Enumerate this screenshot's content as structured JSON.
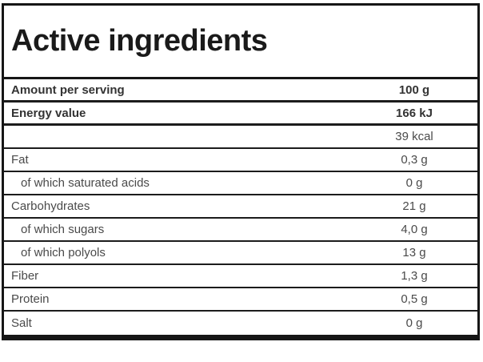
{
  "page": {
    "title": "Active ingredients"
  },
  "table": {
    "rows": [
      {
        "label": "Amount per serving",
        "value": "100 g",
        "emphasis": true
      },
      {
        "label": "Energy value",
        "value": "166 kJ",
        "emphasis": true
      },
      {
        "label": "",
        "value": "39 kcal"
      },
      {
        "label": "Fat",
        "value": "0,3 g"
      },
      {
        "label": "of which saturated acids",
        "value": "0 g",
        "indent": true
      },
      {
        "label": "Carbohydrates",
        "value": "21 g"
      },
      {
        "label": "of which sugars",
        "value": "4,0 g",
        "indent": true
      },
      {
        "label": "of which polyols",
        "value": "13 g",
        "indent": true
      },
      {
        "label": "Fiber",
        "value": "1,3 g"
      },
      {
        "label": "Protein",
        "value": "0,5 g"
      },
      {
        "label": "Salt",
        "value": "0 g"
      }
    ]
  },
  "colors": {
    "background": "#ffffff",
    "border": "#161616",
    "title_text": "#1a1a1a",
    "row_text": "#4a4a4a",
    "emphasis_row_text": "#333333"
  }
}
